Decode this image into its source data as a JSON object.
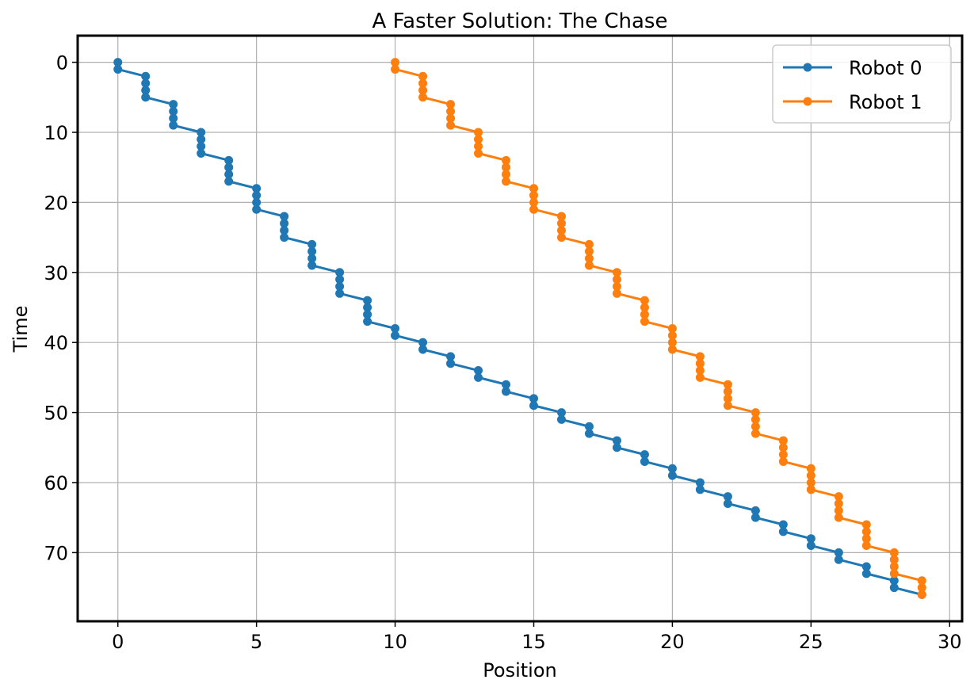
{
  "chart_data": {
    "type": "line",
    "title": "A Faster Solution: The Chase",
    "xlabel": "Position",
    "ylabel": "Time",
    "xlim": [
      -1.45,
      30.45
    ],
    "ylim": [
      79.8,
      -3.8
    ],
    "y_inverted": true,
    "xticks": [
      0,
      5,
      10,
      15,
      20,
      25,
      30
    ],
    "yticks": [
      0,
      10,
      20,
      30,
      40,
      50,
      60,
      70
    ],
    "grid": true,
    "legend_position": "top-right",
    "series": [
      {
        "name": "Robot 0",
        "color": "#1f77b4",
        "marker": "circle",
        "points": [
          [
            0,
            0
          ],
          [
            0,
            1
          ],
          [
            1,
            2
          ],
          [
            1,
            3
          ],
          [
            1,
            4
          ],
          [
            1,
            5
          ],
          [
            2,
            6
          ],
          [
            2,
            7
          ],
          [
            2,
            8
          ],
          [
            2,
            9
          ],
          [
            3,
            10
          ],
          [
            3,
            11
          ],
          [
            3,
            12
          ],
          [
            3,
            13
          ],
          [
            4,
            14
          ],
          [
            4,
            15
          ],
          [
            4,
            16
          ],
          [
            4,
            17
          ],
          [
            5,
            18
          ],
          [
            5,
            19
          ],
          [
            5,
            20
          ],
          [
            5,
            21
          ],
          [
            6,
            22
          ],
          [
            6,
            23
          ],
          [
            6,
            24
          ],
          [
            6,
            25
          ],
          [
            7,
            26
          ],
          [
            7,
            27
          ],
          [
            7,
            28
          ],
          [
            7,
            29
          ],
          [
            8,
            30
          ],
          [
            8,
            31
          ],
          [
            8,
            32
          ],
          [
            8,
            33
          ],
          [
            9,
            34
          ],
          [
            9,
            35
          ],
          [
            9,
            36
          ],
          [
            9,
            37
          ],
          [
            10,
            38
          ],
          [
            10,
            39
          ],
          [
            11,
            40
          ],
          [
            11,
            41
          ],
          [
            12,
            42
          ],
          [
            12,
            43
          ],
          [
            13,
            44
          ],
          [
            13,
            45
          ],
          [
            14,
            46
          ],
          [
            14,
            47
          ],
          [
            15,
            48
          ],
          [
            15,
            49
          ],
          [
            16,
            50
          ],
          [
            16,
            51
          ],
          [
            17,
            52
          ],
          [
            17,
            53
          ],
          [
            18,
            54
          ],
          [
            18,
            55
          ],
          [
            19,
            56
          ],
          [
            19,
            57
          ],
          [
            20,
            58
          ],
          [
            20,
            59
          ],
          [
            21,
            60
          ],
          [
            21,
            61
          ],
          [
            22,
            62
          ],
          [
            22,
            63
          ],
          [
            23,
            64
          ],
          [
            23,
            65
          ],
          [
            24,
            66
          ],
          [
            24,
            67
          ],
          [
            25,
            68
          ],
          [
            25,
            69
          ],
          [
            26,
            70
          ],
          [
            26,
            71
          ],
          [
            27,
            72
          ],
          [
            27,
            73
          ],
          [
            28,
            74
          ],
          [
            28,
            75
          ],
          [
            29,
            76
          ]
        ]
      },
      {
        "name": "Robot 1",
        "color": "#ff7f0e",
        "marker": "circle",
        "points": [
          [
            10,
            0
          ],
          [
            10,
            1
          ],
          [
            11,
            2
          ],
          [
            11,
            3
          ],
          [
            11,
            4
          ],
          [
            11,
            5
          ],
          [
            12,
            6
          ],
          [
            12,
            7
          ],
          [
            12,
            8
          ],
          [
            12,
            9
          ],
          [
            13,
            10
          ],
          [
            13,
            11
          ],
          [
            13,
            12
          ],
          [
            13,
            13
          ],
          [
            14,
            14
          ],
          [
            14,
            15
          ],
          [
            14,
            16
          ],
          [
            14,
            17
          ],
          [
            15,
            18
          ],
          [
            15,
            19
          ],
          [
            15,
            20
          ],
          [
            15,
            21
          ],
          [
            16,
            22
          ],
          [
            16,
            23
          ],
          [
            16,
            24
          ],
          [
            16,
            25
          ],
          [
            17,
            26
          ],
          [
            17,
            27
          ],
          [
            17,
            28
          ],
          [
            17,
            29
          ],
          [
            18,
            30
          ],
          [
            18,
            31
          ],
          [
            18,
            32
          ],
          [
            18,
            33
          ],
          [
            19,
            34
          ],
          [
            19,
            35
          ],
          [
            19,
            36
          ],
          [
            19,
            37
          ],
          [
            20,
            38
          ],
          [
            20,
            39
          ],
          [
            20,
            40
          ],
          [
            20,
            41
          ],
          [
            21,
            42
          ],
          [
            21,
            43
          ],
          [
            21,
            44
          ],
          [
            21,
            45
          ],
          [
            22,
            46
          ],
          [
            22,
            47
          ],
          [
            22,
            48
          ],
          [
            22,
            49
          ],
          [
            23,
            50
          ],
          [
            23,
            51
          ],
          [
            23,
            52
          ],
          [
            23,
            53
          ],
          [
            24,
            54
          ],
          [
            24,
            55
          ],
          [
            24,
            56
          ],
          [
            24,
            57
          ],
          [
            25,
            58
          ],
          [
            25,
            59
          ],
          [
            25,
            60
          ],
          [
            25,
            61
          ],
          [
            26,
            62
          ],
          [
            26,
            63
          ],
          [
            26,
            64
          ],
          [
            26,
            65
          ],
          [
            27,
            66
          ],
          [
            27,
            67
          ],
          [
            27,
            68
          ],
          [
            27,
            69
          ],
          [
            28,
            70
          ],
          [
            28,
            71
          ],
          [
            28,
            72
          ],
          [
            28,
            73
          ],
          [
            29,
            74
          ],
          [
            29,
            75
          ],
          [
            29,
            76
          ]
        ]
      }
    ]
  }
}
